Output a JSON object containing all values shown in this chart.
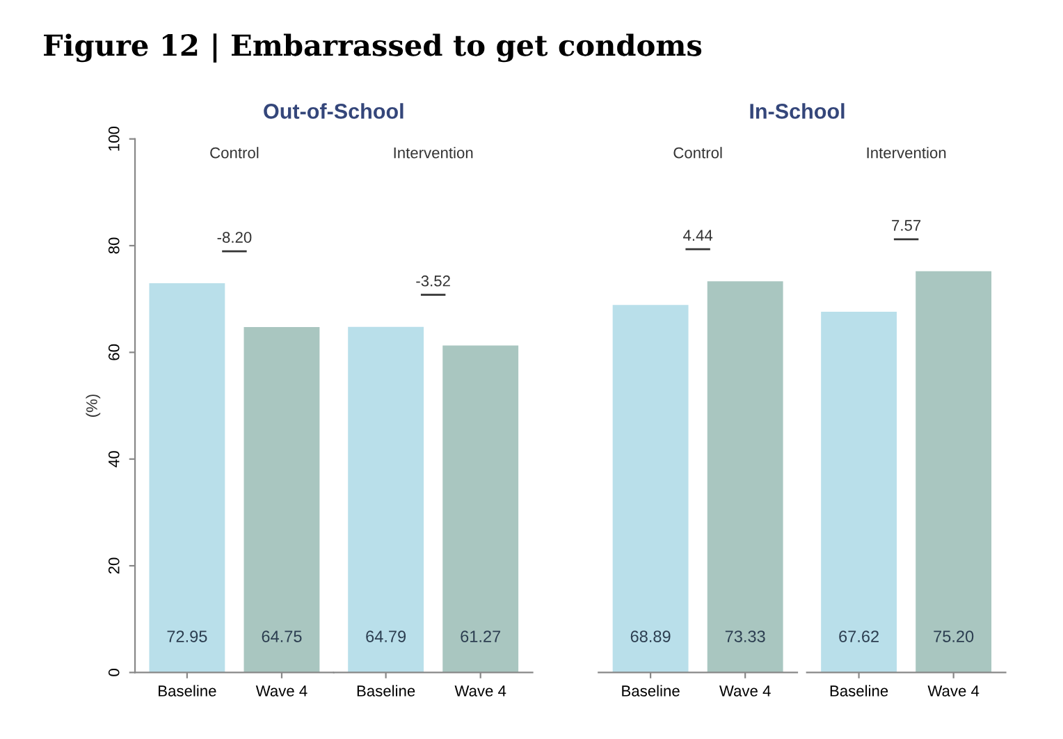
{
  "chart_data": [
    {
      "type": "bar",
      "title": "Control",
      "ylabel": "(%)",
      "annotations": [
        "Figure 12 | Embarrassed to get condoms",
        "Out-of-School",
        "-8.20"
      ],
      "categories": [
        "Baseline",
        "Wave 4"
      ],
      "values": [
        72.95,
        64.75
      ],
      "value_labels": [
        "72.95",
        "64.75"
      ],
      "colors": [
        "#b9dfea",
        "#a9c6c0"
      ],
      "ylim": [
        0,
        100
      ],
      "yticks": [
        0,
        20,
        40,
        60,
        80,
        100
      ],
      "grid": false,
      "legend": false
    },
    {
      "type": "bar",
      "title": "Intervention",
      "annotations": [
        "-3.52"
      ],
      "categories": [
        "Baseline",
        "Wave 4"
      ],
      "values": [
        64.79,
        61.27
      ],
      "value_labels": [
        "64.79",
        "61.27"
      ],
      "colors": [
        "#b9dfea",
        "#a9c6c0"
      ],
      "ylim": [
        0,
        100
      ],
      "tick_labels": "x",
      "grid": false,
      "legend": false
    },
    {
      "type": "bar",
      "title": "Control",
      "annotations": [
        "In-School",
        "4.44"
      ],
      "categories": [
        "Baseline",
        "Wave 4"
      ],
      "values": [
        68.89,
        73.33
      ],
      "value_labels": [
        "68.89",
        "73.33"
      ],
      "colors": [
        "#b9dfea",
        "#a9c6c0"
      ],
      "ylim": [
        0,
        100
      ],
      "tick_labels": "x",
      "grid": false,
      "legend": false
    },
    {
      "type": "bar",
      "title": "Intervention",
      "annotations": [
        "7.57"
      ],
      "categories": [
        "Baseline",
        "Wave 4"
      ],
      "values": [
        67.62,
        75.2
      ],
      "value_labels": [
        "67.62",
        "75.20"
      ],
      "colors": [
        "#b9dfea",
        "#a9c6c0"
      ],
      "ylim": [
        0,
        100
      ],
      "tick_labels": "x",
      "grid": false,
      "legend": false
    }
  ]
}
